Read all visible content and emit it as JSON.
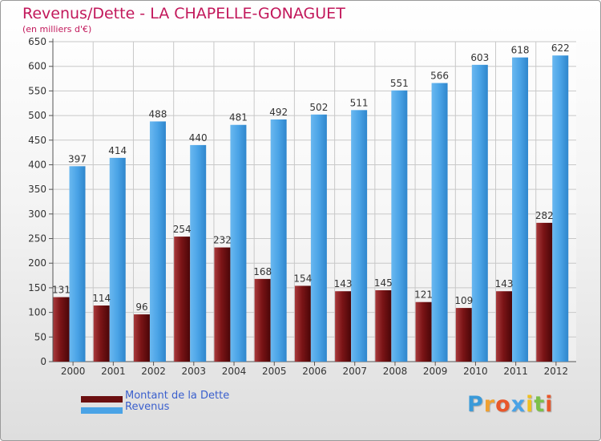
{
  "chart_data": {
    "type": "bar",
    "title": "Revenus/Dette - LA CHAPELLE-GONAGUET",
    "subtitle": "(en milliers d'€)",
    "xlabel": "",
    "ylabel": "",
    "ylim": [
      0,
      650
    ],
    "yticks": [
      "0",
      "50",
      "100",
      "150",
      "200",
      "250",
      "300",
      "350",
      "400",
      "450",
      "500",
      "550",
      "600",
      "650"
    ],
    "grid": true,
    "categories": [
      "2000",
      "2001",
      "2002",
      "2003",
      "2004",
      "2005",
      "2006",
      "2007",
      "2008",
      "2009",
      "2010",
      "2011",
      "2012"
    ],
    "series": [
      {
        "name": "Montant de la Dette",
        "color": "#7b1416",
        "labels": [
          "131",
          "114",
          "96",
          "254",
          "232",
          "168",
          "154",
          "143",
          "145",
          "121",
          "109",
          "143",
          "282"
        ],
        "values": [
          131,
          114,
          96,
          254,
          232,
          168,
          154,
          143,
          145,
          121,
          109,
          143,
          282
        ]
      },
      {
        "name": "Revenus",
        "color": "#4aa3e6",
        "labels": [
          "397",
          "414",
          "488",
          "440",
          "481",
          "492",
          "502",
          "511",
          "551",
          "566",
          "603",
          "618",
          "622"
        ],
        "values": [
          397,
          414,
          488,
          440,
          481,
          492,
          502,
          511,
          551,
          566,
          603,
          618,
          622
        ]
      }
    ],
    "legend": [
      {
        "label": "Montant de la Dette",
        "color": "#6b0f10"
      },
      {
        "label": "Revenus",
        "color": "#4aa3e6"
      }
    ],
    "legend_position": "bottom-left"
  },
  "logo": {
    "letters": [
      "P",
      "r",
      "o",
      "x",
      "i",
      "t",
      "i"
    ],
    "colors": [
      "#3a9ad9",
      "#f0a030",
      "#e8572a",
      "#4aa3e6",
      "#f0c020",
      "#7cc04a",
      "#e8572a"
    ]
  }
}
